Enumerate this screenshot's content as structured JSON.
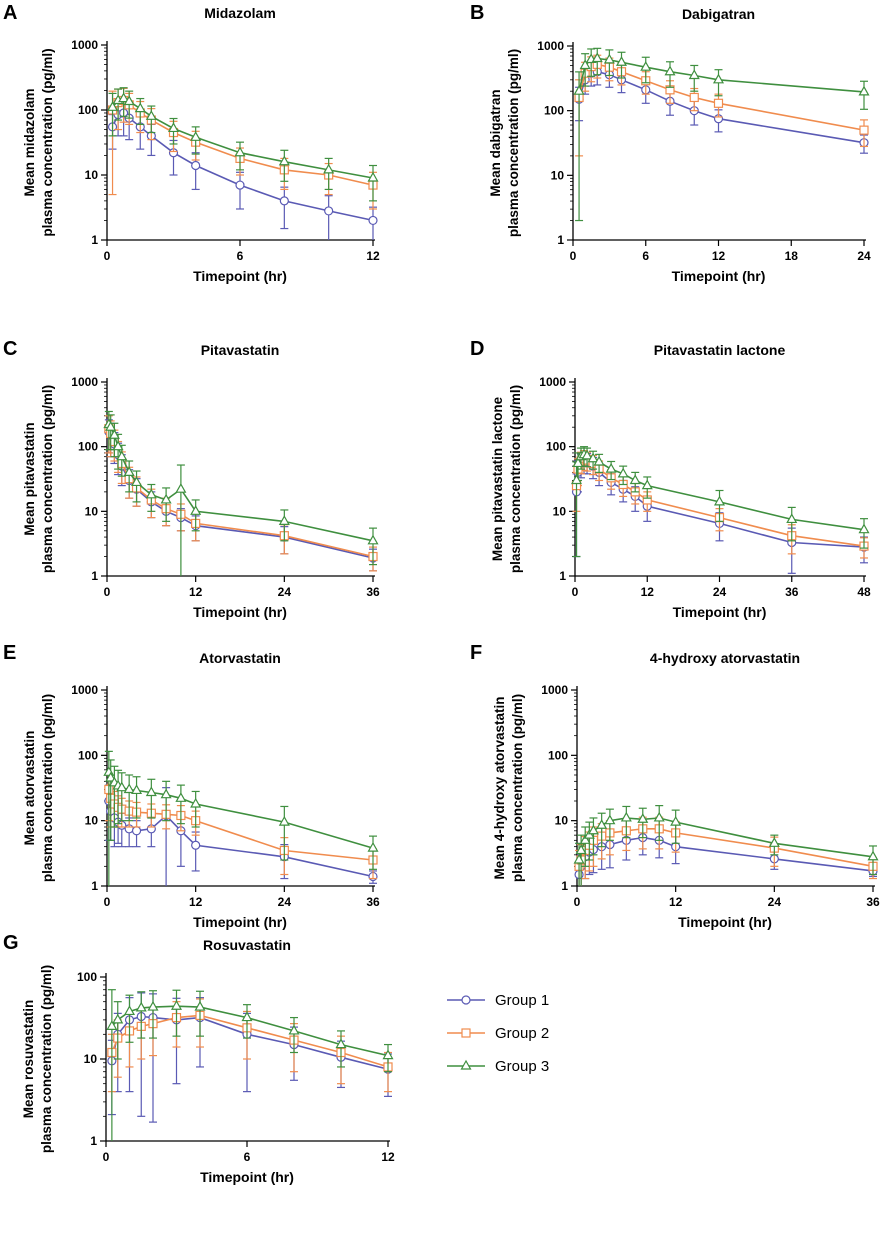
{
  "colors": {
    "Group 1": "#5a5ab4",
    "Group 2": "#f08c4e",
    "Group 3": "#3f8f3f"
  },
  "legend": {
    "items": [
      "Group 1",
      "Group 2",
      "Group 3"
    ]
  },
  "chart_data": [
    {
      "panel": "A",
      "type": "line",
      "title": "Midazolam",
      "ylabel_lines": [
        "Mean midazolam",
        "plasma concentration (pg/ml)"
      ],
      "xlabel": "Timepoint (hr)",
      "yscale": "log",
      "xlim": [
        0,
        12
      ],
      "ylim": [
        1,
        1000
      ],
      "xticks": [
        0,
        6,
        12
      ],
      "yticks": [
        1,
        10,
        100,
        1000
      ],
      "series": [
        {
          "name": "Group 1",
          "x": [
            0.25,
            0.5,
            0.75,
            1,
            1.5,
            2,
            3,
            4,
            6,
            8,
            10,
            12
          ],
          "y": [
            55,
            85,
            90,
            75,
            55,
            40,
            22,
            14,
            7,
            4,
            2.8,
            2
          ],
          "err": [
            30,
            45,
            50,
            40,
            30,
            20,
            12,
            8,
            4,
            2.5,
            2,
            1.2
          ]
        },
        {
          "name": "Group 2",
          "x": [
            0.25,
            0.5,
            0.75,
            1,
            1.5,
            2,
            3,
            4,
            6,
            8,
            10,
            12
          ],
          "y": [
            100,
            130,
            140,
            120,
            90,
            70,
            45,
            32,
            18,
            12,
            10,
            7
          ],
          "err": [
            95,
            80,
            75,
            60,
            45,
            35,
            22,
            15,
            8,
            6,
            5,
            4
          ]
        },
        {
          "name": "Group 3",
          "x": [
            0.25,
            0.5,
            0.75,
            1,
            1.5,
            2,
            3,
            4,
            6,
            8,
            10,
            12
          ],
          "y": [
            110,
            140,
            150,
            135,
            105,
            80,
            52,
            38,
            22,
            16,
            12,
            9
          ],
          "err": [
            70,
            70,
            70,
            60,
            45,
            35,
            22,
            17,
            10,
            8,
            6,
            5
          ]
        }
      ]
    },
    {
      "panel": "B",
      "type": "line",
      "title": "Dabigatran",
      "ylabel_lines": [
        "Mean dabigatran",
        "plasma concentration (pg/ml)"
      ],
      "xlabel": "Timepoint (hr)",
      "yscale": "log",
      "xlim": [
        0,
        24
      ],
      "ylim": [
        1,
        1000
      ],
      "xticks": [
        0,
        6,
        12,
        18,
        24
      ],
      "yticks": [
        1,
        10,
        100,
        1000
      ],
      "series": [
        {
          "name": "Group 1",
          "x": [
            0.5,
            1,
            1.5,
            2,
            3,
            4,
            6,
            8,
            10,
            12,
            24
          ],
          "y": [
            150,
            300,
            380,
            400,
            360,
            300,
            210,
            140,
            100,
            75,
            32
          ],
          "err": [
            80,
            120,
            140,
            150,
            130,
            110,
            80,
            55,
            40,
            28,
            10
          ]
        },
        {
          "name": "Group 2",
          "x": [
            0.5,
            1,
            1.5,
            2,
            3,
            4,
            6,
            8,
            10,
            12,
            24
          ],
          "y": [
            160,
            380,
            480,
            520,
            470,
            400,
            290,
            210,
            160,
            130,
            50
          ],
          "err": [
            140,
            180,
            200,
            200,
            180,
            150,
            110,
            80,
            60,
            50,
            22
          ]
        },
        {
          "name": "Group 3",
          "x": [
            0.5,
            1,
            1.5,
            2,
            3,
            4,
            6,
            8,
            10,
            12,
            24
          ],
          "y": [
            200,
            500,
            620,
            640,
            610,
            560,
            470,
            400,
            350,
            300,
            195
          ],
          "err": [
            198,
            260,
            280,
            280,
            260,
            240,
            200,
            170,
            150,
            130,
            90
          ]
        }
      ]
    },
    {
      "panel": "C",
      "type": "line",
      "title": "Pitavastatin",
      "ylabel_lines": [
        "Mean pitavastatin",
        "plasma concentration (pg/ml)"
      ],
      "xlabel": "Timepoint (hr)",
      "yscale": "log",
      "xlim": [
        0,
        36
      ],
      "ylim": [
        1,
        1000
      ],
      "xticks": [
        0,
        12,
        24,
        36
      ],
      "yticks": [
        1,
        10,
        100,
        1000
      ],
      "series": [
        {
          "name": "Group 1",
          "x": [
            0.25,
            0.5,
            1,
            1.5,
            2,
            3,
            4,
            6,
            8,
            10,
            12,
            24,
            36
          ],
          "y": [
            170,
            150,
            110,
            75,
            50,
            30,
            22,
            14,
            10,
            8,
            6,
            4,
            1.9
          ],
          "err": [
            90,
            80,
            55,
            38,
            25,
            14,
            10,
            6,
            4,
            3,
            2.5,
            1.8,
            0.7
          ]
        },
        {
          "name": "Group 2",
          "x": [
            0.25,
            0.5,
            1,
            1.5,
            2,
            3,
            4,
            6,
            8,
            10,
            12,
            24,
            36
          ],
          "y": [
            190,
            160,
            120,
            80,
            55,
            32,
            23,
            15,
            11,
            9,
            6.5,
            4.2,
            2
          ],
          "err": [
            110,
            90,
            60,
            40,
            28,
            16,
            11,
            7,
            5,
            4,
            3,
            2,
            0.8
          ]
        },
        {
          "name": "Group 3",
          "x": [
            0.25,
            0.5,
            1,
            1.5,
            2,
            3,
            4,
            6,
            8,
            10,
            12,
            24,
            36
          ],
          "y": [
            220,
            200,
            150,
            100,
            70,
            40,
            28,
            18,
            15,
            22,
            10,
            7,
            3.5
          ],
          "err": [
            130,
            110,
            80,
            55,
            35,
            20,
            14,
            8,
            8,
            30,
            5,
            3.5,
            2
          ]
        }
      ]
    },
    {
      "panel": "D",
      "type": "line",
      "title": "Pitavastatin lactone",
      "ylabel_lines": [
        "Mean pitavastatin lactone",
        "plasma concentration (pg/ml)"
      ],
      "xlabel": "Timepoint (hr)",
      "yscale": "log",
      "xlim": [
        0,
        48
      ],
      "ylim": [
        1,
        1000
      ],
      "xticks": [
        0,
        12,
        24,
        36,
        48
      ],
      "yticks": [
        1,
        10,
        100,
        1000
      ],
      "series": [
        {
          "name": "Group 1",
          "x": [
            0.25,
            0.5,
            1,
            1.5,
            2,
            3,
            4,
            6,
            8,
            10,
            12,
            24,
            36,
            48
          ],
          "y": [
            20,
            40,
            55,
            60,
            58,
            50,
            40,
            28,
            22,
            17,
            12,
            6.5,
            3.3,
            2.8
          ],
          "err": [
            18,
            20,
            22,
            22,
            20,
            18,
            15,
            10,
            8,
            7,
            5,
            3,
            2.2,
            1.2
          ]
        },
        {
          "name": "Group 2",
          "x": [
            0.25,
            0.5,
            1,
            1.5,
            2,
            3,
            4,
            6,
            8,
            10,
            12,
            24,
            36,
            48
          ],
          "y": [
            25,
            45,
            60,
            65,
            62,
            55,
            45,
            33,
            26,
            20,
            15,
            8,
            4.2,
            2.9
          ],
          "err": [
            15,
            20,
            22,
            22,
            20,
            18,
            15,
            11,
            9,
            7,
            5,
            3,
            2,
            1
          ]
        },
        {
          "name": "Group 3",
          "x": [
            0.25,
            0.5,
            1,
            1.5,
            2,
            3,
            4,
            6,
            8,
            10,
            12,
            24,
            36,
            48
          ],
          "y": [
            30,
            55,
            70,
            75,
            72,
            65,
            58,
            45,
            38,
            30,
            25,
            14,
            7.5,
            5.2
          ],
          "err": [
            28,
            25,
            25,
            25,
            23,
            20,
            18,
            14,
            12,
            10,
            9,
            7,
            4,
            2.5
          ]
        }
      ]
    },
    {
      "panel": "E",
      "type": "line",
      "title": "Atorvastatin",
      "ylabel_lines": [
        "Mean atorvastatin",
        "plasma concentration (pg/ml)"
      ],
      "xlabel": "Timepoint (hr)",
      "yscale": "log",
      "xlim": [
        0,
        36
      ],
      "ylim": [
        1,
        1000
      ],
      "xticks": [
        0,
        12,
        24,
        36
      ],
      "yticks": [
        1,
        10,
        100,
        1000
      ],
      "series": [
        {
          "name": "Group 1",
          "x": [
            0.25,
            0.5,
            1,
            1.5,
            2,
            3,
            4,
            6,
            8,
            10,
            12,
            24,
            36
          ],
          "y": [
            20,
            14,
            11,
            9.5,
            8.5,
            7.5,
            7,
            7.5,
            12,
            7,
            4.2,
            2.8,
            1.4
          ],
          "err": [
            15,
            9,
            7,
            5,
            4.5,
            3.5,
            3,
            3.5,
            20,
            5,
            2.5,
            1.5,
            0.3
          ]
        },
        {
          "name": "Group 2",
          "x": [
            0.25,
            0.5,
            1,
            1.5,
            2,
            3,
            4,
            6,
            8,
            10,
            12,
            24,
            36
          ],
          "y": [
            30,
            22,
            18,
            16,
            15,
            14,
            13.5,
            13,
            12.5,
            12,
            10,
            3.5,
            2.5
          ],
          "err": [
            20,
            14,
            10,
            8,
            7,
            6,
            5.5,
            5,
            5,
            5,
            4,
            2,
            1.2
          ]
        },
        {
          "name": "Group 3",
          "x": [
            0.25,
            0.5,
            1,
            1.5,
            2,
            3,
            4,
            6,
            8,
            10,
            12,
            24,
            36
          ],
          "y": [
            55,
            45,
            38,
            34,
            32,
            30,
            29,
            27,
            25,
            22,
            18,
            9.5,
            3.8
          ],
          "err": [
            60,
            40,
            30,
            25,
            22,
            20,
            18,
            16,
            15,
            13,
            10,
            7,
            2
          ]
        }
      ]
    },
    {
      "panel": "F",
      "type": "line",
      "title": "4-hydroxy atorvastatin",
      "ylabel_lines": [
        "Mean 4-hydroxy atorvastatin",
        "plasma concentration (pg/ml)"
      ],
      "xlabel": "Timepoint (hr)",
      "yscale": "log",
      "xlim": [
        0,
        36
      ],
      "ylim": [
        1,
        1000
      ],
      "xticks": [
        0,
        12,
        24,
        36
      ],
      "yticks": [
        1,
        10,
        100,
        1000
      ],
      "series": [
        {
          "name": "Group 1",
          "x": [
            0.25,
            0.5,
            1,
            1.5,
            2,
            3,
            4,
            6,
            8,
            10,
            12,
            24,
            36
          ],
          "y": [
            1.5,
            2,
            2.8,
            3.3,
            3.6,
            4,
            4.3,
            5,
            5.5,
            5,
            4,
            2.6,
            1.7
          ],
          "err": [
            0.8,
            1,
            1.5,
            1.8,
            2,
            2.2,
            2.4,
            2.5,
            2.5,
            2.3,
            1.8,
            0.8,
            0.3
          ]
        },
        {
          "name": "Group 2",
          "x": [
            0.25,
            0.5,
            1,
            1.5,
            2,
            3,
            4,
            6,
            8,
            10,
            12,
            24,
            36
          ],
          "y": [
            2,
            2.5,
            3.5,
            4.2,
            5,
            5.8,
            6.5,
            7,
            7.5,
            7.5,
            6.5,
            3.8,
            2
          ],
          "err": [
            1.5,
            1.8,
            2.2,
            2.5,
            3,
            3.2,
            3.5,
            3.5,
            3.8,
            3.8,
            3.2,
            1.8,
            0.7
          ]
        },
        {
          "name": "Group 3",
          "x": [
            0.25,
            0.5,
            1,
            1.5,
            2,
            3,
            4,
            6,
            8,
            10,
            12,
            24,
            36
          ],
          "y": [
            2.5,
            3.5,
            5,
            6,
            7,
            8.5,
            10,
            11,
            10.5,
            11,
            9.5,
            4.5,
            2.8
          ],
          "err": [
            2,
            2.5,
            3,
            3.5,
            4,
            4.5,
            5,
            5.5,
            5,
            6,
            5,
            1.5,
            1.3
          ]
        }
      ]
    },
    {
      "panel": "G",
      "type": "line",
      "title": "Rosuvastatin",
      "ylabel_lines": [
        "Mean rosuvastatin",
        "plasma concentration (pg/ml)"
      ],
      "xlabel": "Timepoint (hr)",
      "yscale": "log",
      "xlim": [
        0,
        12
      ],
      "ylim": [
        1,
        100
      ],
      "xticks": [
        0,
        6,
        12
      ],
      "yticks": [
        1,
        10,
        100
      ],
      "series": [
        {
          "name": "Group 1",
          "x": [
            0.25,
            0.5,
            1,
            1.5,
            2,
            3,
            4,
            6,
            8,
            10,
            12
          ],
          "y": [
            9.5,
            20,
            30,
            33,
            32,
            30,
            32,
            20,
            15,
            10.5,
            7.5
          ],
          "err": [
            7.4,
            16,
            26,
            31,
            30.3,
            25,
            24,
            16,
            9.5,
            6,
            4
          ]
        },
        {
          "name": "Group 2",
          "x": [
            0.25,
            0.5,
            1,
            1.5,
            2,
            3,
            4,
            6,
            8,
            10,
            12
          ],
          "y": [
            12,
            18,
            22,
            25,
            27,
            32,
            34,
            24,
            17,
            12,
            8
          ],
          "err": [
            8,
            12,
            14,
            15,
            16,
            18,
            20,
            14,
            10,
            7,
            4
          ]
        },
        {
          "name": "Group 3",
          "x": [
            0.25,
            0.5,
            1,
            1.5,
            2,
            3,
            4,
            6,
            8,
            10,
            12
          ],
          "y": [
            25,
            30,
            38,
            42,
            43,
            44,
            43,
            32,
            22,
            15,
            11
          ],
          "err": [
            45,
            20,
            22,
            24,
            25,
            25,
            24,
            14,
            10,
            7,
            4
          ]
        }
      ]
    }
  ]
}
